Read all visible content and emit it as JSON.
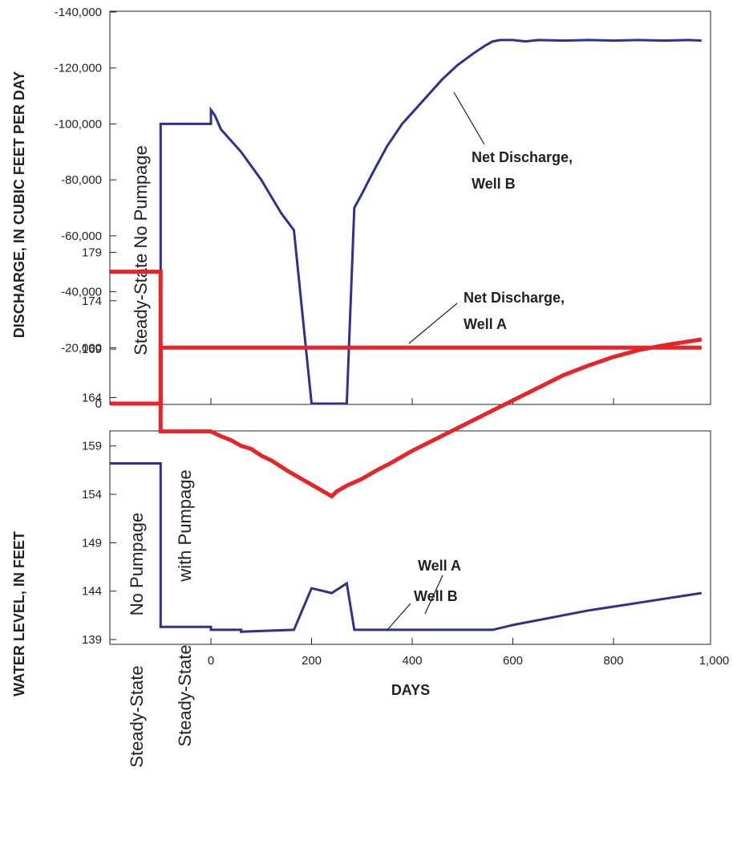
{
  "chart_data": [
    {
      "type": "line",
      "ylabel": "DISCHARGE, IN CUBIC FEET PER DAY",
      "xlim": [
        -200,
        1000
      ],
      "ylim": [
        0,
        -140000
      ],
      "y_ticks": [
        0,
        -20000,
        -40000,
        -60000,
        -80000,
        -100000,
        -120000,
        -140000
      ],
      "y_tick_labels": [
        "0",
        "-20,000",
        "-40,000",
        "-60,000",
        "-80,000",
        "-100,000",
        "-120,000",
        "-140,000"
      ],
      "grid": false,
      "series": [
        {
          "name": "Net Discharge, Well A",
          "color": "#e8232a",
          "x": [
            -200,
            -100,
            -100,
            975
          ],
          "y": [
            0,
            0,
            -20000,
            -20000
          ]
        },
        {
          "name": "Net Discharge, Well B",
          "color": "#2e3192",
          "x": [
            -100,
            -100,
            0,
            0,
            8,
            20,
            40,
            60,
            80,
            100,
            120,
            140,
            165,
            200,
            270,
            285,
            300,
            320,
            350,
            380,
            400,
            430,
            460,
            490,
            520,
            545,
            560,
            575,
            600,
            625,
            650,
            700,
            750,
            800,
            850,
            900,
            950,
            975
          ],
          "y": [
            0,
            -100000,
            -100000,
            -105000,
            -103000,
            -98000,
            -94000,
            -90000,
            -85000,
            -80000,
            -74000,
            -68000,
            -62000,
            0,
            0,
            -70000,
            -75000,
            -82000,
            -92000,
            -100000,
            -104000,
            -110000,
            -116000,
            -121000,
            -125000,
            -128000,
            -129500,
            -130000,
            -130000,
            -129500,
            -130000,
            -129800,
            -130000,
            -129800,
            -130000,
            -129800,
            -130000,
            -129800
          ]
        }
      ],
      "annotations": [
        {
          "id": "well-b",
          "line1": "Net Discharge,",
          "line2": "Well B"
        },
        {
          "id": "well-a",
          "line1": "Net Discharge,",
          "line2": "Well A"
        },
        {
          "id": "steady-no-pump",
          "text": "Steady-State No Pumpage"
        }
      ]
    },
    {
      "type": "line",
      "xlabel": "DAYS",
      "ylabel": "WATER LEVEL, IN FEET",
      "xlim": [
        -200,
        1000
      ],
      "ylim": [
        139,
        180
      ],
      "x_ticks": [
        0,
        200,
        400,
        600,
        800,
        1000
      ],
      "x_tick_labels": [
        "0",
        "200",
        "400",
        "600",
        "800",
        "1,000"
      ],
      "y_ticks": [
        139,
        144,
        149,
        154,
        159,
        164,
        169,
        174,
        179
      ],
      "y_tick_labels": [
        "139",
        "144",
        "149",
        "154",
        "159",
        "164",
        "169",
        "174",
        "179"
      ],
      "grid": false,
      "series": [
        {
          "name": "Well A",
          "color": "#e8232a",
          "x": [
            -200,
            -100,
            -100,
            0,
            20,
            40,
            60,
            80,
            100,
            120,
            150,
            180,
            210,
            240,
            250,
            270,
            300,
            330,
            360,
            400,
            450,
            500,
            550,
            600,
            650,
            700,
            750,
            800,
            850,
            900,
            950,
            975
          ],
          "y": [
            177,
            177,
            160.5,
            160.5,
            160,
            159.6,
            159,
            158.7,
            158,
            157.5,
            156.5,
            155.6,
            154.7,
            153.8,
            154.3,
            154.9,
            155.6,
            156.5,
            157.3,
            158.5,
            159.8,
            161.1,
            162.4,
            163.7,
            165,
            166.3,
            167.3,
            168.2,
            168.9,
            169.4,
            169.8,
            170
          ]
        },
        {
          "name": "Well B",
          "color": "#2e3192",
          "x": [
            -200,
            -100,
            -100,
            0,
            0,
            60,
            60,
            165,
            200,
            240,
            270,
            285,
            560,
            600,
            650,
            700,
            750,
            800,
            850,
            900,
            950,
            975
          ],
          "y": [
            157.2,
            157.2,
            140.3,
            140.3,
            140,
            140,
            139.8,
            140,
            144.3,
            143.8,
            144.8,
            140,
            140,
            140.5,
            141,
            141.5,
            142,
            142.4,
            142.8,
            143.2,
            143.6,
            143.8
          ]
        }
      ],
      "annotations": [
        {
          "id": "well-a",
          "text": "Well A"
        },
        {
          "id": "well-b",
          "text": "Well B"
        },
        {
          "id": "steady-no-pump",
          "text1": "Steady-State",
          "text2": "No Pumpage"
        },
        {
          "id": "steady-with-pump",
          "text1": "Steady-State",
          "text2": "with Pumpage"
        }
      ]
    }
  ]
}
